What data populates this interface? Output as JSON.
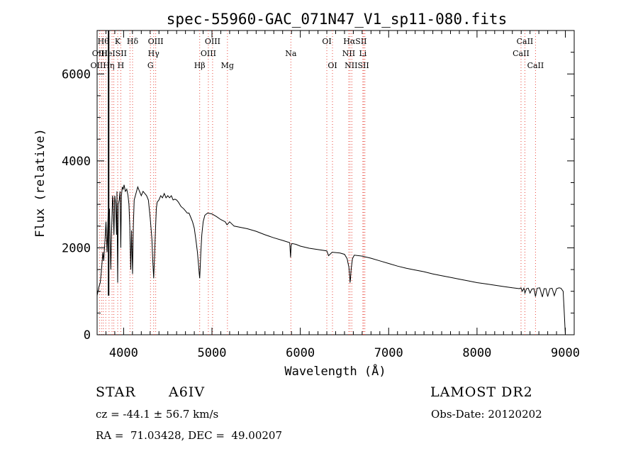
{
  "chart_data": {
    "type": "line",
    "title": "spec-55960-GAC_071N47_V1_sp11-080.fits",
    "xlabel": "Wavelength (Å)",
    "ylabel": "Flux (relative)",
    "xlim": [
      3700,
      9100
    ],
    "ylim": [
      0,
      7000
    ],
    "xticks": [
      4000,
      5000,
      6000,
      7000,
      8000,
      9000
    ],
    "yticks": [
      0,
      2000,
      4000,
      6000
    ],
    "series": [
      {
        "x": [
          3700,
          3720,
          3735,
          3750,
          3765,
          3775,
          3790,
          3800,
          3812,
          3825,
          3840,
          3855,
          3865,
          3875,
          3880,
          3890,
          3900,
          3910,
          3920,
          3925,
          3933,
          3940,
          3950,
          3960,
          3968,
          3975,
          3985,
          3995,
          4005,
          4020,
          4035,
          4050,
          4060,
          4070,
          4080,
          4090,
          4101,
          4110,
          4120,
          4140,
          4160,
          4180,
          4200,
          4220,
          4240,
          4260,
          4280,
          4300,
          4320,
          4330,
          4340,
          4350,
          4360,
          4370,
          4380,
          4400,
          4420,
          4440,
          4460,
          4480,
          4500,
          4520,
          4540,
          4560,
          4580,
          4600,
          4620,
          4650,
          4680,
          4700,
          4720,
          4740,
          4760,
          4780,
          4800,
          4820,
          4835,
          4848,
          4856,
          4861,
          4866,
          4874,
          4885,
          4900,
          4920,
          4950,
          5000,
          5050,
          5100,
          5150,
          5170,
          5180,
          5200,
          5250,
          5300,
          5400,
          5500,
          5600,
          5700,
          5800,
          5880,
          5890,
          5896,
          5905,
          5950,
          6000,
          6100,
          6200,
          6300,
          6320,
          6360,
          6450,
          6500,
          6530,
          6550,
          6560,
          6563,
          6568,
          6575,
          6590,
          6610,
          6700,
          6800,
          6900,
          7000,
          7100,
          7200,
          7300,
          7400,
          7500,
          7600,
          7700,
          7800,
          7900,
          8000,
          8100,
          8200,
          8300,
          8400,
          8480,
          8498,
          8510,
          8530,
          8542,
          8560,
          8580,
          8600,
          8620,
          8645,
          8662,
          8680,
          8710,
          8740,
          8760,
          8780,
          8800,
          8825,
          8850,
          8875,
          8900,
          8930,
          8950,
          8975,
          8985,
          8995,
          9000
        ],
        "y": [
          900,
          1100,
          1200,
          1500,
          1900,
          1700,
          2200,
          2600,
          1900,
          2800,
          2900,
          1500,
          2500,
          3200,
          3100,
          2300,
          3200,
          3000,
          2300,
          3300,
          1200,
          3000,
          3100,
          3300,
          2000,
          3200,
          3400,
          3350,
          3450,
          3300,
          3350,
          3200,
          3000,
          2500,
          1500,
          2400,
          1400,
          2500,
          3100,
          3250,
          3400,
          3300,
          3200,
          3300,
          3250,
          3200,
          3100,
          2700,
          2200,
          1700,
          1300,
          1800,
          2400,
          2900,
          3050,
          3100,
          3200,
          3150,
          3250,
          3150,
          3200,
          3150,
          3200,
          3100,
          3120,
          3100,
          3050,
          2950,
          2900,
          2850,
          2800,
          2800,
          2700,
          2600,
          2450,
          2150,
          1900,
          1600,
          1400,
          1300,
          1500,
          1900,
          2300,
          2600,
          2750,
          2800,
          2780,
          2720,
          2650,
          2600,
          2530,
          2550,
          2600,
          2500,
          2480,
          2440,
          2380,
          2300,
          2230,
          2170,
          2120,
          1780,
          2050,
          2100,
          2080,
          2040,
          1990,
          1960,
          1930,
          1820,
          1900,
          1880,
          1850,
          1750,
          1550,
          1330,
          1200,
          1280,
          1500,
          1750,
          1830,
          1810,
          1760,
          1700,
          1640,
          1580,
          1530,
          1490,
          1450,
          1400,
          1360,
          1320,
          1280,
          1240,
          1200,
          1170,
          1140,
          1110,
          1080,
          1060,
          1080,
          1000,
          1070,
          960,
          1060,
          1070,
          960,
          1050,
          1060,
          880,
          1070,
          1080,
          870,
          1060,
          1060,
          880,
          1060,
          1070,
          900,
          1060,
          1080,
          1070,
          1000,
          600,
          200,
          0
        ]
      }
    ],
    "lines": [
      {
        "x": 3727,
        "labels": [
          "OII"
        ]
      },
      {
        "x": 3750,
        "labels": [
          "OII"
        ]
      },
      {
        "x": 3770,
        "labels": [
          "Hθ"
        ]
      },
      {
        "x": 3798,
        "labels": [
          "HeI"
        ]
      },
      {
        "x": 3835,
        "labels": [
          "Hη"
        ]
      },
      {
        "x": 3869,
        "labels": [
          "SII"
        ]
      },
      {
        "x": 3889,
        "labels": [
          "K"
        ]
      },
      {
        "x": 3933,
        "labels": [
          ""
        ]
      },
      {
        "x": 3968,
        "labels": [
          "H"
        ]
      },
      {
        "x": 4072,
        "labels": [
          "SII"
        ]
      },
      {
        "x": 4101,
        "labels": [
          "Hδ"
        ]
      },
      {
        "x": 4304,
        "labels": [
          "G"
        ]
      },
      {
        "x": 4340,
        "labels": [
          "Hγ"
        ]
      },
      {
        "x": 4363,
        "labels": [
          "OIII"
        ]
      },
      {
        "x": 4861,
        "labels": [
          "Hβ"
        ]
      },
      {
        "x": 4959,
        "labels": [
          "OIII"
        ]
      },
      {
        "x": 5007,
        "labels": [
          "OIII"
        ]
      },
      {
        "x": 5175,
        "labels": [
          "Mg"
        ]
      },
      {
        "x": 5893,
        "labels": [
          "Na"
        ]
      },
      {
        "x": 6300,
        "labels": [
          "OI"
        ]
      },
      {
        "x": 6364,
        "labels": [
          "OI"
        ]
      },
      {
        "x": 6548,
        "labels": [
          "NII"
        ]
      },
      {
        "x": 6563,
        "labels": [
          "Hα"
        ]
      },
      {
        "x": 6583,
        "labels": [
          "NII"
        ]
      },
      {
        "x": 6708,
        "labels": [
          "Li"
        ]
      },
      {
        "x": 6717,
        "labels": [
          "SII"
        ]
      },
      {
        "x": 6731,
        "labels": [
          "SII"
        ]
      },
      {
        "x": 8498,
        "labels": [
          "CaII"
        ]
      },
      {
        "x": 8542,
        "labels": [
          "CaII"
        ]
      },
      {
        "x": 8662,
        "labels": [
          "CaII"
        ]
      }
    ],
    "label_rows": [
      [
        {
          "text": "Hθ",
          "x": 3770
        },
        {
          "text": "K",
          "x": 3933
        },
        {
          "text": "Hδ",
          "x": 4101
        },
        {
          "text": "OIII",
          "x": 4363
        },
        {
          "text": "OIII",
          "x": 5007
        },
        {
          "text": "OI",
          "x": 6300
        },
        {
          "text": "HαSII",
          "x": 6620
        },
        {
          "text": "CaII",
          "x": 8542
        }
      ],
      [
        {
          "text": "OIII",
          "x": 3730
        },
        {
          "text": "HeISII",
          "x": 3890
        },
        {
          "text": "Hγ",
          "x": 4340
        },
        {
          "text": "OIII",
          "x": 4959
        },
        {
          "text": "Na",
          "x": 5893
        },
        {
          "text": "NII",
          "x": 6548
        },
        {
          "text": "Li",
          "x": 6708
        },
        {
          "text": "CaII",
          "x": 8498
        }
      ],
      [
        {
          "text": "OIIHη",
          "x": 3760
        },
        {
          "text": "H",
          "x": 3968
        },
        {
          "text": "G",
          "x": 4304
        },
        {
          "text": "Hβ",
          "x": 4861
        },
        {
          "text": "Mg",
          "x": 5175
        },
        {
          "text": "OI",
          "x": 6364
        },
        {
          "text": "NIISII",
          "x": 6640
        },
        {
          "text": "CaII",
          "x": 8662
        }
      ]
    ],
    "marker_line_x": 3830
  },
  "footer": {
    "object_type": "STAR",
    "subclass": "A6IV",
    "survey": "LAMOST DR2",
    "velocity": "cz = -44.1 ± 56.7 km/s",
    "obs_date": "Obs-Date: 20120202",
    "coords": "RA =  71.03428, DEC =  49.00207"
  }
}
